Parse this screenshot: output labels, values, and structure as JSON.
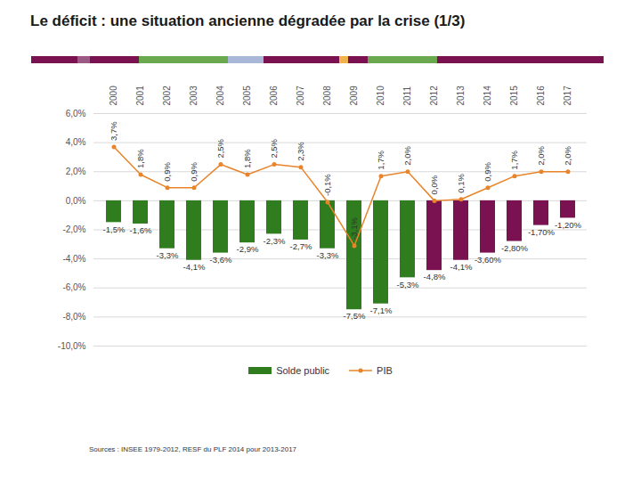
{
  "chart_data": {
    "type": "bar",
    "title": "Le déficit : une situation ancienne dégradée par la crise (1/3)",
    "caption": "Sources : INSEE 1979-2012, RESF du PLF 2014 pour 2013-2017",
    "categories": [
      "2000",
      "2001",
      "2002",
      "2003",
      "2004",
      "2005",
      "2006",
      "2007",
      "2008",
      "2009",
      "2010",
      "2011",
      "2012",
      "2013",
      "2014",
      "2015",
      "2016",
      "2017"
    ],
    "ylim": [
      -10,
      6
    ],
    "yticks": [
      {
        "value": -10,
        "label": "-10,0%"
      },
      {
        "value": -8,
        "label": "-8,0%"
      },
      {
        "value": -6,
        "label": "-6,0%"
      },
      {
        "value": -4,
        "label": "-4,0%"
      },
      {
        "value": -2,
        "label": "-2,0%"
      },
      {
        "value": 0,
        "label": "0,0%"
      },
      {
        "value": 2,
        "label": "2,0%"
      },
      {
        "value": 4,
        "label": "4,0%"
      },
      {
        "value": 6,
        "label": "6,0%"
      }
    ],
    "grid": true,
    "data_labels": true,
    "legend": "bottom",
    "series": [
      {
        "name": "Solde public",
        "type": "bar",
        "colors": [
          "#2f7d1e",
          "#2f7d1e",
          "#2f7d1e",
          "#2f7d1e",
          "#2f7d1e",
          "#2f7d1e",
          "#2f7d1e",
          "#2f7d1e",
          "#2f7d1e",
          "#2f7d1e",
          "#2f7d1e",
          "#2f7d1e",
          "#7a1150",
          "#7a1150",
          "#7a1150",
          "#7a1150",
          "#7a1150",
          "#7a1150"
        ],
        "values": [
          -1.5,
          -1.6,
          -3.3,
          -4.1,
          -3.6,
          -2.9,
          -2.3,
          -2.7,
          -3.3,
          -7.5,
          -7.1,
          -5.3,
          -4.8,
          -4.1,
          -3.6,
          -2.8,
          -1.7,
          -1.2
        ],
        "value_labels": [
          "-1,5%",
          "-1,6%",
          "-3,3%",
          "-4,1%",
          "-3,6%",
          "-2,9%",
          "-2,3%",
          "-2,7%",
          "-3,3%",
          "-7,5%",
          "-7,1%",
          "-5,3%",
          "-4,8%",
          "-4,1%",
          "-3,60%",
          "-2,80%",
          "-1,70%",
          "-1,20%"
        ]
      },
      {
        "name": "PIB",
        "type": "line",
        "color": "#e8842a",
        "marker": "circle",
        "values": [
          3.7,
          1.8,
          0.9,
          0.9,
          2.5,
          1.8,
          2.5,
          2.3,
          -0.1,
          -3.1,
          1.7,
          2.0,
          0.0,
          0.1,
          0.9,
          1.7,
          2.0,
          2.0
        ],
        "value_labels": [
          "3,7%",
          "1,8%",
          "0,9%",
          "0,9%",
          "2,5%",
          "1,8%",
          "2,5%",
          "2,3%",
          "-0,1%",
          "-3,1%",
          "1,7%",
          "2,0%",
          "0,0%",
          "0,1%",
          "0,9%",
          "1,7%",
          "2,0%",
          "2,0%"
        ]
      }
    ]
  }
}
